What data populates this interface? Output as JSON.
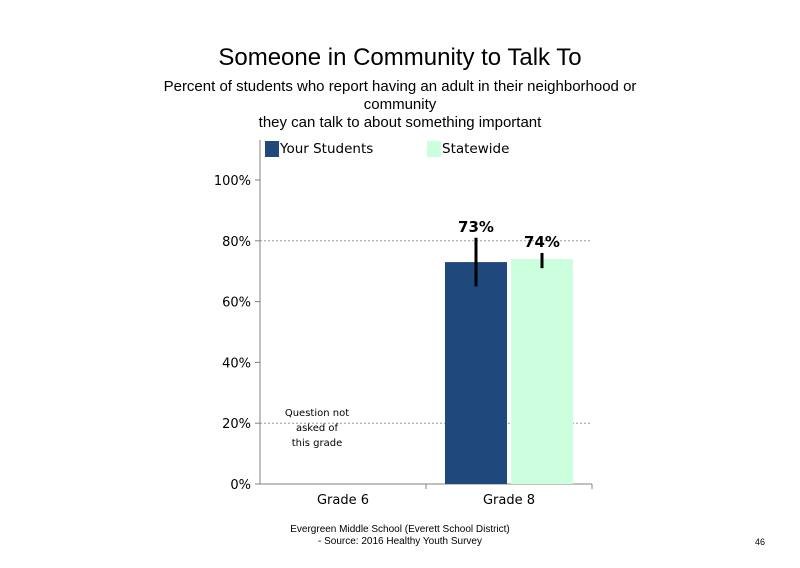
{
  "chart_data": {
    "type": "bar",
    "title": "Someone in Community to Talk To",
    "subtitle_lines": [
      "Percent of students who report having an adult in their neighborhood or",
      "community",
      "they can talk to about something important"
    ],
    "categories": [
      "Grade 6",
      "Grade 8"
    ],
    "series": [
      {
        "name": "Your Students",
        "color": "#1F497D",
        "values": [
          null,
          73
        ],
        "labels": [
          "",
          "73%"
        ],
        "error_low": [
          null,
          65
        ],
        "error_high": [
          null,
          81
        ]
      },
      {
        "name": "Statewide",
        "color": "#CCFFDD",
        "values": [
          null,
          74
        ],
        "labels": [
          "",
          "74%"
        ],
        "error_low": [
          null,
          71
        ],
        "error_high": [
          null,
          76
        ]
      }
    ],
    "ylim": [
      0,
      100
    ],
    "yticks": [
      0,
      20,
      40,
      60,
      80,
      100
    ],
    "ytick_labels": [
      "0%",
      "20%",
      "40%",
      "60%",
      "80%",
      "100%"
    ],
    "gridlines": [
      20,
      80
    ],
    "annotations": [
      {
        "category": "Grade 6",
        "lines": [
          "Question not",
          "asked of",
          "this grade"
        ]
      }
    ],
    "legend_position": "top"
  },
  "footer": {
    "line1": "Evergreen Middle School (Everett School District)",
    "line2": "- Source: 2016 Healthy Youth Survey"
  },
  "page_number": "46"
}
